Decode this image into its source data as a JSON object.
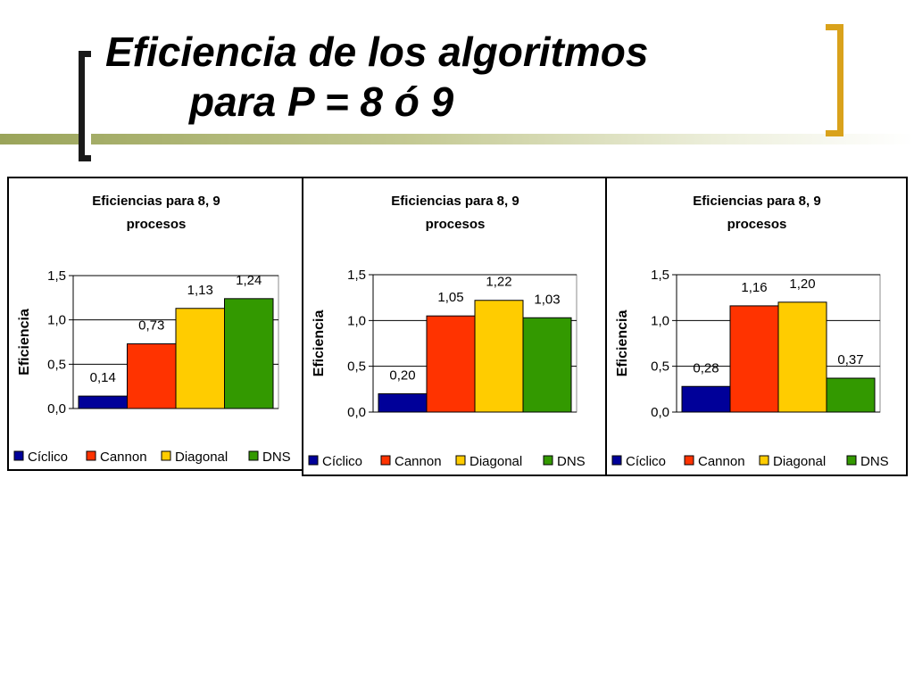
{
  "slide": {
    "title_line1": "Eficiencia de los algoritmos",
    "title_line2": "para P = 8 ó 9"
  },
  "colors": {
    "accent_bracket": "#d9a21b",
    "dark_bracket": "#1a1a1a",
    "olive_line": "#9aa45a"
  },
  "chart_data": [
    {
      "type": "bar",
      "title": "Eficiencias para 8, 9 procesos",
      "title_lines": [
        "Eficiencias para 8, 9",
        "procesos"
      ],
      "ylabel": "Eficiencia",
      "ylim": [
        0,
        1.5
      ],
      "yticks": [
        "0,0",
        "0,5",
        "1,0",
        "1,5"
      ],
      "grid": true,
      "legend": "bottom",
      "series": [
        {
          "name": "Cíclico",
          "values": [
            0.14
          ],
          "label": "0,14",
          "color": "#000099"
        },
        {
          "name": "Cannon",
          "values": [
            0.73
          ],
          "label": "0,73",
          "color": "#ff3300"
        },
        {
          "name": "Diagonal",
          "values": [
            1.13
          ],
          "label": "1,13",
          "color": "#ffcc00"
        },
        {
          "name": "DNS",
          "values": [
            1.24
          ],
          "label": "1,24",
          "color": "#339900"
        }
      ]
    },
    {
      "type": "bar",
      "title": "Eficiencias para 8, 9 procesos",
      "title_lines": [
        "Eficiencias para 8, 9",
        "procesos"
      ],
      "ylabel": "Eficiencia",
      "ylim": [
        0,
        1.5
      ],
      "yticks": [
        "0,0",
        "0,5",
        "1,0",
        "1,5"
      ],
      "grid": true,
      "legend": "bottom",
      "series": [
        {
          "name": "Cíclico",
          "values": [
            0.2
          ],
          "label": "0,20",
          "color": "#000099"
        },
        {
          "name": "Cannon",
          "values": [
            1.05
          ],
          "label": "1,05",
          "color": "#ff3300"
        },
        {
          "name": "Diagonal",
          "values": [
            1.22
          ],
          "label": "1,22",
          "color": "#ffcc00"
        },
        {
          "name": "DNS",
          "values": [
            1.03
          ],
          "label": "1,03",
          "color": "#339900"
        }
      ]
    },
    {
      "type": "bar",
      "title": "Eficiencias para 8, 9 procesos",
      "title_lines": [
        "Eficiencias para 8, 9",
        "procesos"
      ],
      "ylabel": "Eficiencia",
      "ylim": [
        0,
        1.5
      ],
      "yticks": [
        "0,0",
        "0,5",
        "1,0",
        "1,5"
      ],
      "grid": true,
      "legend": "bottom",
      "series": [
        {
          "name": "Cíclico",
          "values": [
            0.28
          ],
          "label": "0,28",
          "color": "#000099"
        },
        {
          "name": "Cannon",
          "values": [
            1.16
          ],
          "label": "1,16",
          "color": "#ff3300"
        },
        {
          "name": "Diagonal",
          "values": [
            1.2
          ],
          "label": "1,20",
          "color": "#ffcc00"
        },
        {
          "name": "DNS",
          "values": [
            0.37
          ],
          "label": "0,37",
          "color": "#339900"
        }
      ]
    }
  ]
}
